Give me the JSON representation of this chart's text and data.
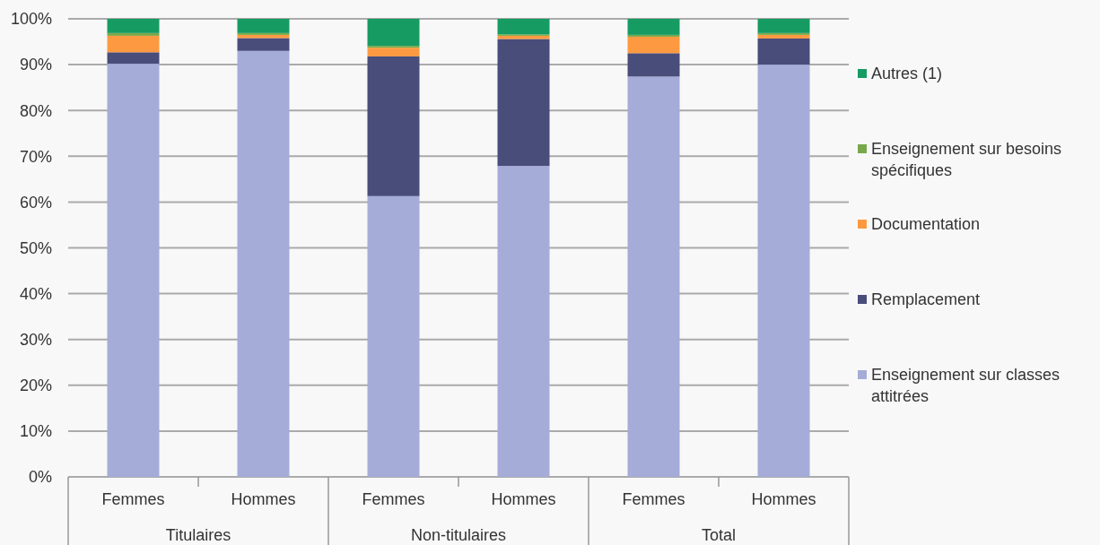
{
  "chart_data": {
    "type": "bar",
    "stacked": true,
    "categories": [
      "Femmes",
      "Hommes",
      "Femmes",
      "Hommes",
      "Femmes",
      "Hommes"
    ],
    "annotations": [
      "Titulaires",
      "Non-titulaires",
      "Total"
    ],
    "series": [
      {
        "name": "Enseignement sur classes attitrées",
        "color": "#a5acd8",
        "values": [
          90.2,
          93.0,
          61.3,
          67.9,
          87.4,
          90.0
        ]
      },
      {
        "name": "Remplacement",
        "color": "#484d7a",
        "values": [
          2.5,
          2.8,
          30.5,
          27.7,
          5.1,
          5.7
        ]
      },
      {
        "name": "Documentation",
        "color": "#fd9a41",
        "values": [
          3.6,
          0.7,
          1.9,
          0.7,
          3.6,
          0.8
        ]
      },
      {
        "name": "Enseignement sur besoins spécifiques",
        "color": "#79a84a",
        "values": [
          0.6,
          0.4,
          0.4,
          0.3,
          0.4,
          0.4
        ]
      },
      {
        "name": "Autres (1)",
        "color": "#169b62",
        "values": [
          3.1,
          3.1,
          5.9,
          3.4,
          3.5,
          3.1
        ]
      }
    ],
    "ylim": [
      0,
      100
    ],
    "yticks": [
      {
        "value": 0,
        "label": "0%"
      },
      {
        "value": 10,
        "label": "10%"
      },
      {
        "value": 20,
        "label": "20%"
      },
      {
        "value": 30,
        "label": "30%"
      },
      {
        "value": 40,
        "label": "40%"
      },
      {
        "value": 50,
        "label": "50%"
      },
      {
        "value": 60,
        "label": "60%"
      },
      {
        "value": 70,
        "label": "70%"
      },
      {
        "value": 80,
        "label": "80%"
      },
      {
        "value": 90,
        "label": "90%"
      },
      {
        "value": 100,
        "label": "100%"
      }
    ],
    "grid": "y",
    "legend": "right"
  }
}
